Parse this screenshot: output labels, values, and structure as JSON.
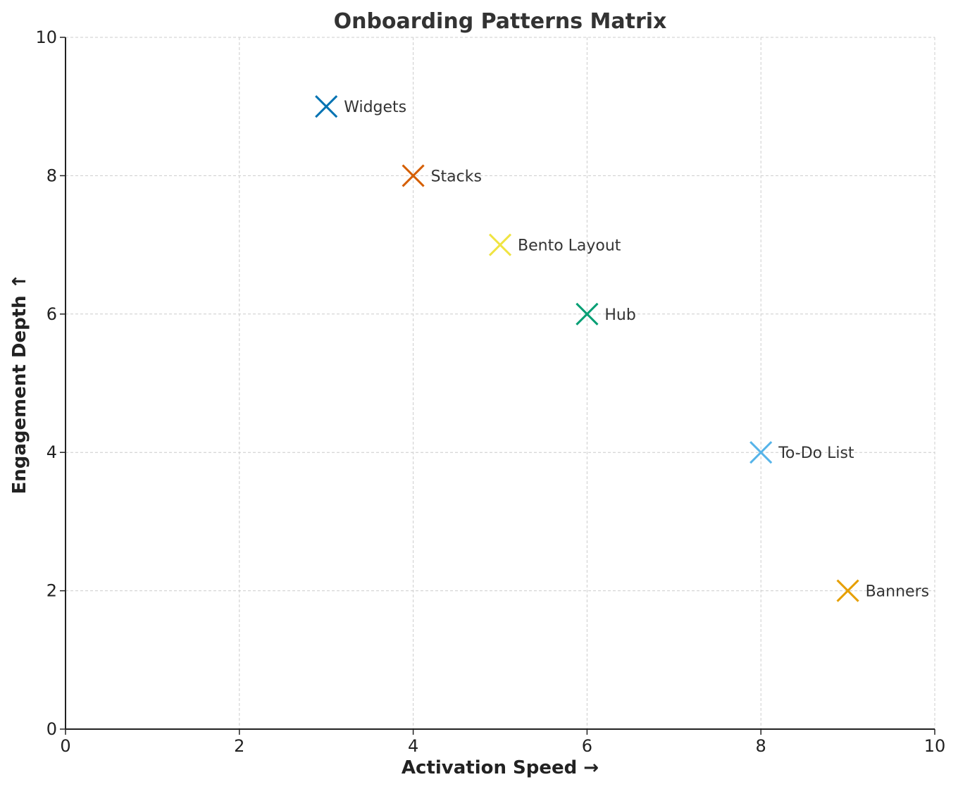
{
  "chart_data": {
    "type": "scatter",
    "title": "Onboarding Patterns Matrix",
    "xlabel": "Activation Speed →",
    "ylabel": "Engagement Depth ↑",
    "xlim": [
      0,
      10
    ],
    "ylim": [
      0,
      10
    ],
    "xticks": [
      0,
      2,
      4,
      6,
      8,
      10
    ],
    "yticks": [
      0,
      2,
      4,
      6,
      8,
      10
    ],
    "grid": true,
    "marker": "x",
    "points": [
      {
        "label": "Widgets",
        "x": 3,
        "y": 9,
        "color": "#0072b2"
      },
      {
        "label": "Stacks",
        "x": 4,
        "y": 8,
        "color": "#d55e00"
      },
      {
        "label": "Bento Layout",
        "x": 5,
        "y": 7,
        "color": "#f0e442"
      },
      {
        "label": "Hub",
        "x": 6,
        "y": 6,
        "color": "#009e73"
      },
      {
        "label": "To-Do List",
        "x": 8,
        "y": 4,
        "color": "#56b4e9"
      },
      {
        "label": "Banners",
        "x": 9,
        "y": 2,
        "color": "#e69f00"
      }
    ]
  }
}
